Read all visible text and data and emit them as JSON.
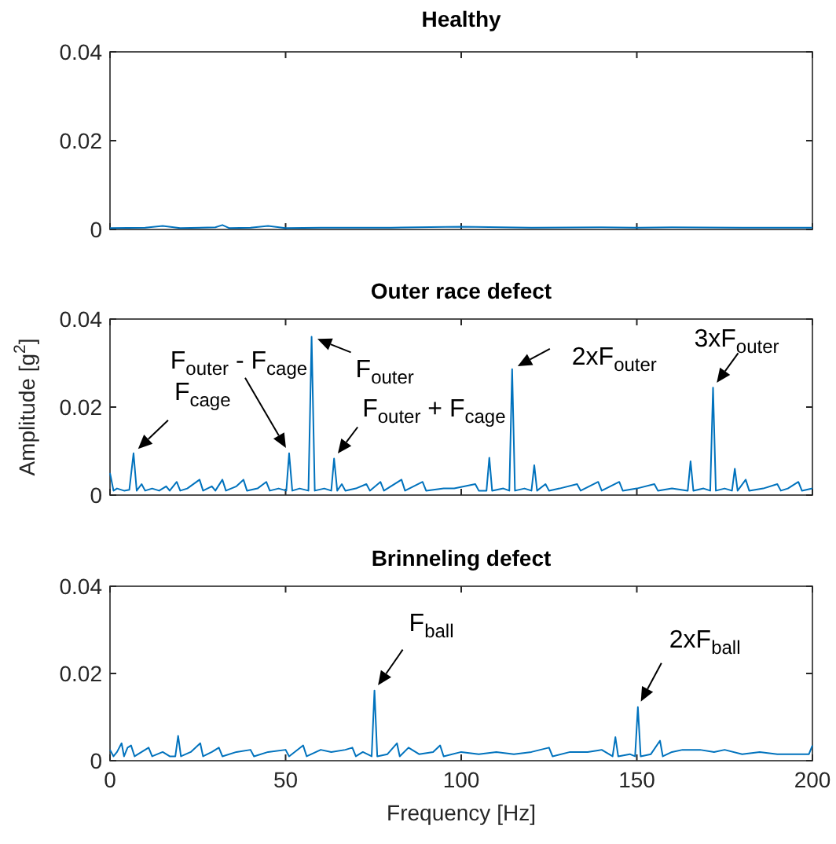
{
  "chart_data": [
    {
      "type": "line",
      "title": "Healthy",
      "xlim": [
        0,
        200
      ],
      "xticks": [
        0,
        50,
        100,
        150,
        200
      ],
      "ylim": [
        0,
        0.04
      ],
      "yticks": [
        0,
        0.02,
        0.04
      ],
      "tick_labels": "y",
      "grid": false,
      "series": [
        {
          "color": "#0072bd",
          "x": [
            0,
            10,
            15,
            20,
            30,
            32,
            34,
            40,
            45,
            50,
            60,
            80,
            100,
            120,
            140,
            150,
            160,
            180,
            200
          ],
          "values": [
            0.0003,
            0.0004,
            0.0008,
            0.0003,
            0.0005,
            0.001,
            0.0003,
            0.0004,
            0.0008,
            0.0003,
            0.0004,
            0.0004,
            0.0006,
            0.0004,
            0.0005,
            0.0004,
            0.0005,
            0.0004,
            0.0004
          ]
        }
      ]
    },
    {
      "type": "line",
      "title": "Outer race defect",
      "ylabel": "Amplitude [g$^{2}$]",
      "xlim": [
        0,
        200
      ],
      "xticks": [
        0,
        50,
        100,
        150,
        200
      ],
      "ylim": [
        0,
        0.04
      ],
      "yticks": [
        0,
        0.02,
        0.04
      ],
      "tick_labels": "y",
      "grid": false,
      "series": [
        {
          "color": "#0072bd",
          "x": [
            0,
            1,
            2,
            4,
            5.5,
            6.7,
            7.6,
            9,
            10,
            12,
            14,
            16,
            17,
            19,
            20,
            22,
            25.5,
            26.5,
            29,
            30,
            32,
            33,
            36,
            38,
            39,
            42,
            44.5,
            45.5,
            48,
            50.2,
            51,
            51.9,
            54,
            56.5,
            57.4,
            58.3,
            61,
            63,
            63.8,
            64.7,
            66,
            67,
            70,
            73,
            74,
            77,
            78,
            83,
            84,
            89,
            90,
            95,
            98,
            104,
            105,
            107.2,
            108,
            108.8,
            112,
            113.7,
            114.5,
            115.3,
            118,
            120,
            120.8,
            121.6,
            124,
            125,
            128,
            133,
            134,
            139,
            140,
            145,
            146,
            150,
            155,
            156,
            160,
            164.5,
            165.3,
            166.1,
            169,
            170.9,
            171.7,
            172.5,
            175,
            177.1,
            177.9,
            178.7,
            181,
            182,
            186,
            190,
            191,
            193,
            196,
            197,
            200
          ],
          "values": [
            0.005,
            0.001,
            0.0015,
            0.001,
            0.0012,
            0.0095,
            0.001,
            0.0025,
            0.001,
            0.0015,
            0.001,
            0.002,
            0.001,
            0.003,
            0.001,
            0.0015,
            0.0035,
            0.001,
            0.002,
            0.001,
            0.0035,
            0.001,
            0.002,
            0.0035,
            0.001,
            0.0015,
            0.003,
            0.001,
            0.0015,
            0.001,
            0.0095,
            0.001,
            0.0015,
            0.001,
            0.036,
            0.001,
            0.0015,
            0.001,
            0.0083,
            0.001,
            0.0025,
            0.001,
            0.0015,
            0.0025,
            0.001,
            0.003,
            0.001,
            0.0035,
            0.001,
            0.003,
            0.001,
            0.0015,
            0.0015,
            0.0025,
            0.001,
            0.001,
            0.0085,
            0.001,
            0.0015,
            0.001,
            0.0286,
            0.001,
            0.0015,
            0.001,
            0.0068,
            0.001,
            0.0025,
            0.001,
            0.0015,
            0.0025,
            0.001,
            0.003,
            0.001,
            0.003,
            0.001,
            0.0015,
            0.0025,
            0.001,
            0.0015,
            0.001,
            0.0077,
            0.001,
            0.0015,
            0.001,
            0.0244,
            0.001,
            0.0015,
            0.001,
            0.006,
            0.001,
            0.0035,
            0.001,
            0.0015,
            0.0025,
            0.001,
            0.0015,
            0.003,
            0.001,
            0.0015
          ]
        }
      ],
      "annotations": [
        {
          "text": "F$_{cage}$",
          "x": 6.7,
          "y": 0.0095
        },
        {
          "text": "F$_{outer}$ - F$_{cage}$",
          "x": 51,
          "y": 0.0095
        },
        {
          "text": "F$_{outer}$",
          "x": 57.4,
          "y": 0.036
        },
        {
          "text": "F$_{outer}$ + F$_{cage}$",
          "x": 63.8,
          "y": 0.0083
        },
        {
          "text": "2xF$_{outer}$",
          "x": 114.5,
          "y": 0.0286
        },
        {
          "text": "3xF$_{outer}$",
          "x": 171.7,
          "y": 0.0244
        }
      ]
    },
    {
      "type": "line",
      "title": "Brinneling defect",
      "xlabel": "Frequency [Hz]",
      "xlim": [
        0,
        200
      ],
      "xticks": [
        0,
        50,
        100,
        150,
        200
      ],
      "ylim": [
        0,
        0.04
      ],
      "yticks": [
        0,
        0.02,
        0.04
      ],
      "grid": false,
      "series": [
        {
          "color": "#0072bd",
          "x": [
            0,
            1,
            2,
            3.3,
            4,
            5,
            6,
            7,
            9,
            11,
            12,
            15,
            17,
            18.6,
            19.4,
            20.2,
            23,
            25.7,
            26.5,
            29,
            31,
            32,
            36,
            40,
            41,
            45,
            50,
            51,
            55,
            56,
            60,
            63,
            67,
            69,
            70,
            72,
            74.5,
            75.3,
            76.1,
            79,
            81.7,
            82.5,
            85,
            88,
            92,
            94,
            95,
            100,
            105,
            110,
            115,
            120,
            125,
            126,
            131,
            136,
            140,
            143.1,
            143.9,
            144.7,
            148,
            149.5,
            150.3,
            151.1,
            154,
            156.6,
            157.4,
            160,
            163,
            168,
            172,
            175,
            180,
            185,
            190,
            195,
            199,
            200
          ],
          "values": [
            0.0025,
            0.001,
            0.002,
            0.004,
            0.001,
            0.003,
            0.0035,
            0.001,
            0.002,
            0.003,
            0.001,
            0.002,
            0.001,
            0.001,
            0.0057,
            0.001,
            0.002,
            0.004,
            0.001,
            0.002,
            0.003,
            0.001,
            0.002,
            0.0025,
            0.001,
            0.002,
            0.0025,
            0.001,
            0.0035,
            0.001,
            0.0025,
            0.002,
            0.0025,
            0.003,
            0.001,
            0.002,
            0.001,
            0.0161,
            0.001,
            0.0015,
            0.004,
            0.001,
            0.003,
            0.0015,
            0.002,
            0.0035,
            0.001,
            0.002,
            0.0015,
            0.002,
            0.0015,
            0.002,
            0.003,
            0.001,
            0.002,
            0.002,
            0.0025,
            0.001,
            0.0054,
            0.001,
            0.0015,
            0.001,
            0.0123,
            0.001,
            0.0015,
            0.0046,
            0.001,
            0.002,
            0.0025,
            0.0025,
            0.002,
            0.0025,
            0.0015,
            0.002,
            0.0015,
            0.0015,
            0.0015,
            0.0035
          ]
        }
      ],
      "annotations": [
        {
          "text": "F$_{ball}$",
          "x": 75.3,
          "y": 0.0161
        },
        {
          "text": "2xF$_{ball}$",
          "x": 150.3,
          "y": 0.0123
        }
      ]
    }
  ]
}
